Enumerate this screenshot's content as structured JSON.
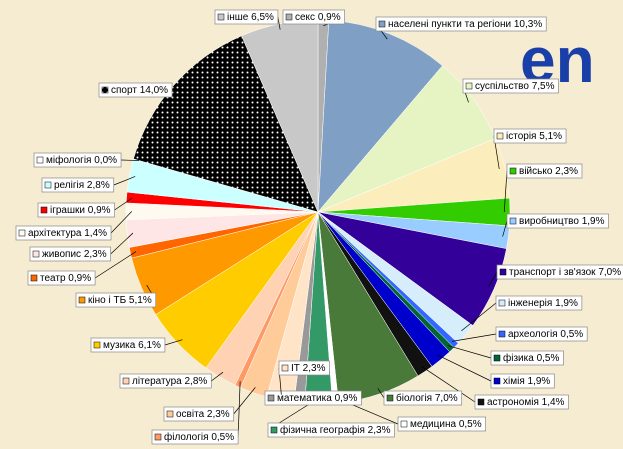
{
  "logo_text": "en",
  "chart_data": {
    "type": "pie",
    "categories": [
      "секс",
      "населені пункти та регіони",
      "суспільство",
      "історія",
      "військо",
      "виробництво",
      "транспорт і зв'язок",
      "інженерія",
      "археологія",
      "фізика",
      "хімія",
      "астрономія",
      "біологія",
      "медицина",
      "фізична географія",
      "математика",
      "ІТ",
      "освіта",
      "філологія",
      "література",
      "музика",
      "кіно і ТБ",
      "театр",
      "живопис",
      "архітектура",
      "іграшки",
      "релігія",
      "міфологія",
      "спорт",
      "інше"
    ],
    "values": [
      0.9,
      10.3,
      7.5,
      5.1,
      2.3,
      1.9,
      7.0,
      1.9,
      0.5,
      0.5,
      1.9,
      1.4,
      7.0,
      0.5,
      2.3,
      0.9,
      2.3,
      2.3,
      0.5,
      2.8,
      6.1,
      5.1,
      0.9,
      2.3,
      1.4,
      0.9,
      2.8,
      0.0,
      14.0,
      6.5
    ],
    "value_labels": [
      "0,9%",
      "10,3%",
      "7,5%",
      "5,1%",
      "2,3%",
      "1,9%",
      "7,0%",
      "1,9%",
      "0,5%",
      "0,5%",
      "1,9%",
      "1,4%",
      "7,0%",
      "0,5%",
      "2,3%",
      "0,9%",
      "2,3%",
      "2,3%",
      "0,5%",
      "2,8%",
      "6,1%",
      "5,1%",
      "0,9%",
      "2,3%",
      "1,4%",
      "0,9%",
      "2,8%",
      "0,0%",
      "14,0%",
      "6,5%"
    ],
    "colors": [
      "#b0b0b0",
      "#7f9fc4",
      "#e6f4c4",
      "#fbeebc",
      "#33cc00",
      "#99ccff",
      "#330099",
      "#d6eefc",
      "#3366ff",
      "#006633",
      "#0000cc",
      "#111111",
      "#4a7a3a",
      "#ffffff",
      "#339966",
      "#999999",
      "#ffe4c8",
      "#ffcc99",
      "#ff9966",
      "#ffd2b4",
      "#ffcc00",
      "#ff9900",
      "#ff6600",
      "#ffe6e6",
      "#fffaf0",
      "#ff0000",
      "#ccffff",
      "#ffffff",
      "url(#dots)",
      "#c8c8c8"
    ]
  }
}
